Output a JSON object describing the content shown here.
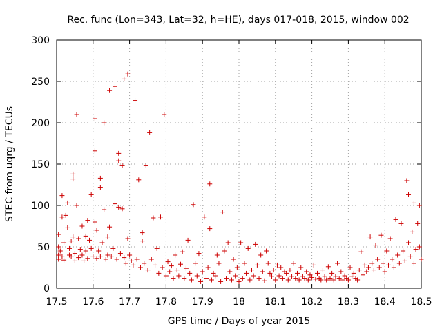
{
  "chart_data": {
    "type": "scatter",
    "title": "Rec. func (Lon=343, Lat=32, h=HE), days 017-018, 2015, window 002",
    "xlabel": "GPS time / Days of year 2015",
    "ylabel": "STEC from uqrg / TECUs",
    "xlim": [
      17.5,
      18.5
    ],
    "ylim": [
      0,
      300
    ],
    "xticks": [
      "17.5",
      "17.6",
      "17.7",
      "17.8",
      "17.9",
      "18",
      "18.1",
      "18.2",
      "18.3",
      "18.4",
      "18.5"
    ],
    "yticks": [
      "0",
      "50",
      "100",
      "150",
      "200",
      "250",
      "300"
    ],
    "grid": true,
    "marker": "+",
    "color": "#cc0000",
    "points": [
      [
        17.505,
        65
      ],
      [
        17.505,
        50
      ],
      [
        17.505,
        40
      ],
      [
        17.505,
        35
      ],
      [
        17.51,
        45
      ],
      [
        17.515,
        112
      ],
      [
        17.515,
        86
      ],
      [
        17.515,
        38
      ],
      [
        17.52,
        55
      ],
      [
        17.52,
        34
      ],
      [
        17.525,
        88
      ],
      [
        17.53,
        103
      ],
      [
        17.53,
        73
      ],
      [
        17.535,
        48
      ],
      [
        17.535,
        40
      ],
      [
        17.54,
        57
      ],
      [
        17.54,
        38
      ],
      [
        17.545,
        138
      ],
      [
        17.545,
        132
      ],
      [
        17.545,
        62
      ],
      [
        17.55,
        42
      ],
      [
        17.55,
        33
      ],
      [
        17.555,
        210
      ],
      [
        17.555,
        100
      ],
      [
        17.56,
        60
      ],
      [
        17.56,
        37
      ],
      [
        17.565,
        47
      ],
      [
        17.57,
        75
      ],
      [
        17.57,
        40
      ],
      [
        17.575,
        33
      ],
      [
        17.58,
        63
      ],
      [
        17.58,
        45
      ],
      [
        17.585,
        82
      ],
      [
        17.585,
        36
      ],
      [
        17.59,
        58
      ],
      [
        17.595,
        113
      ],
      [
        17.595,
        48
      ],
      [
        17.6,
        38
      ],
      [
        17.605,
        205
      ],
      [
        17.605,
        166
      ],
      [
        17.605,
        80
      ],
      [
        17.61,
        70
      ],
      [
        17.61,
        36
      ],
      [
        17.615,
        45
      ],
      [
        17.62,
        133
      ],
      [
        17.62,
        122
      ],
      [
        17.62,
        38
      ],
      [
        17.625,
        55
      ],
      [
        17.63,
        200
      ],
      [
        17.63,
        95
      ],
      [
        17.635,
        35
      ],
      [
        17.64,
        62
      ],
      [
        17.64,
        40
      ],
      [
        17.645,
        239
      ],
      [
        17.645,
        74
      ],
      [
        17.65,
        38
      ],
      [
        17.655,
        48
      ],
      [
        17.66,
        244
      ],
      [
        17.66,
        102
      ],
      [
        17.665,
        35
      ],
      [
        17.67,
        163
      ],
      [
        17.67,
        154
      ],
      [
        17.67,
        98
      ],
      [
        17.675,
        42
      ],
      [
        17.68,
        148
      ],
      [
        17.68,
        96
      ],
      [
        17.685,
        253
      ],
      [
        17.685,
        37
      ],
      [
        17.69,
        30
      ],
      [
        17.695,
        259
      ],
      [
        17.695,
        60
      ],
      [
        17.7,
        40
      ],
      [
        17.705,
        33
      ],
      [
        17.71,
        28
      ],
      [
        17.715,
        227
      ],
      [
        17.72,
        35
      ],
      [
        17.725,
        131
      ],
      [
        17.73,
        25
      ],
      [
        17.735,
        67
      ],
      [
        17.735,
        57
      ],
      [
        17.74,
        30
      ],
      [
        17.745,
        148
      ],
      [
        17.75,
        22
      ],
      [
        17.755,
        188
      ],
      [
        17.76,
        35
      ],
      [
        17.765,
        85
      ],
      [
        17.77,
        28
      ],
      [
        17.775,
        48
      ],
      [
        17.78,
        18
      ],
      [
        17.785,
        86
      ],
      [
        17.79,
        25
      ],
      [
        17.795,
        210
      ],
      [
        17.8,
        15
      ],
      [
        17.805,
        32
      ],
      [
        17.81,
        20
      ],
      [
        17.815,
        27
      ],
      [
        17.82,
        12
      ],
      [
        17.825,
        40
      ],
      [
        17.83,
        22
      ],
      [
        17.835,
        15
      ],
      [
        17.84,
        29
      ],
      [
        17.845,
        44
      ],
      [
        17.85,
        12
      ],
      [
        17.855,
        24
      ],
      [
        17.86,
        58
      ],
      [
        17.865,
        18
      ],
      [
        17.87,
        10
      ],
      [
        17.875,
        101
      ],
      [
        17.88,
        30
      ],
      [
        17.885,
        15
      ],
      [
        17.89,
        42
      ],
      [
        17.895,
        8
      ],
      [
        17.9,
        20
      ],
      [
        17.905,
        86
      ],
      [
        17.91,
        12
      ],
      [
        17.915,
        25
      ],
      [
        17.92,
        126
      ],
      [
        17.92,
        72
      ],
      [
        17.925,
        10
      ],
      [
        17.93,
        18
      ],
      [
        17.935,
        15
      ],
      [
        17.94,
        40
      ],
      [
        17.945,
        30
      ],
      [
        17.95,
        8
      ],
      [
        17.955,
        92
      ],
      [
        17.96,
        45
      ],
      [
        17.965,
        12
      ],
      [
        17.97,
        55
      ],
      [
        17.975,
        20
      ],
      [
        17.98,
        10
      ],
      [
        17.985,
        35
      ],
      [
        17.99,
        15
      ],
      [
        17.995,
        25
      ],
      [
        18.0,
        8
      ],
      [
        18.005,
        55
      ],
      [
        18.01,
        12
      ],
      [
        18.015,
        30
      ],
      [
        18.02,
        18
      ],
      [
        18.025,
        48
      ],
      [
        18.03,
        10
      ],
      [
        18.035,
        22
      ],
      [
        18.04,
        15
      ],
      [
        18.045,
        53
      ],
      [
        18.05,
        28
      ],
      [
        18.055,
        12
      ],
      [
        18.06,
        40
      ],
      [
        18.065,
        20
      ],
      [
        18.07,
        9
      ],
      [
        18.075,
        45
      ],
      [
        18.08,
        30
      ],
      [
        18.085,
        18
      ],
      [
        18.09,
        14
      ],
      [
        18.095,
        22
      ],
      [
        18.1,
        10
      ],
      [
        18.105,
        28
      ],
      [
        18.11,
        15
      ],
      [
        18.115,
        25
      ],
      [
        18.12,
        12
      ],
      [
        18.125,
        20
      ],
      [
        18.13,
        18
      ],
      [
        18.135,
        10
      ],
      [
        18.14,
        22
      ],
      [
        18.145,
        14
      ],
      [
        18.15,
        30
      ],
      [
        18.155,
        12
      ],
      [
        18.16,
        18
      ],
      [
        18.165,
        10
      ],
      [
        18.17,
        25
      ],
      [
        18.175,
        14
      ],
      [
        18.18,
        12
      ],
      [
        18.185,
        20
      ],
      [
        18.19,
        10
      ],
      [
        18.195,
        16
      ],
      [
        18.2,
        13
      ],
      [
        18.205,
        28
      ],
      [
        18.21,
        11
      ],
      [
        18.215,
        18
      ],
      [
        18.22,
        12
      ],
      [
        18.225,
        10
      ],
      [
        18.23,
        22
      ],
      [
        18.235,
        14
      ],
      [
        18.24,
        10
      ],
      [
        18.245,
        26
      ],
      [
        18.25,
        12
      ],
      [
        18.255,
        18
      ],
      [
        18.26,
        10
      ],
      [
        18.265,
        14
      ],
      [
        18.27,
        30
      ],
      [
        18.275,
        12
      ],
      [
        18.28,
        20
      ],
      [
        18.285,
        10
      ],
      [
        18.29,
        15
      ],
      [
        18.295,
        12
      ],
      [
        18.3,
        10
      ],
      [
        18.305,
        25
      ],
      [
        18.31,
        14
      ],
      [
        18.315,
        18
      ],
      [
        18.32,
        12
      ],
      [
        18.325,
        10
      ],
      [
        18.33,
        22
      ],
      [
        18.335,
        44
      ],
      [
        18.34,
        16
      ],
      [
        18.345,
        28
      ],
      [
        18.35,
        20
      ],
      [
        18.355,
        25
      ],
      [
        18.36,
        62
      ],
      [
        18.365,
        30
      ],
      [
        18.37,
        22
      ],
      [
        18.375,
        52
      ],
      [
        18.38,
        35
      ],
      [
        18.385,
        25
      ],
      [
        18.39,
        64
      ],
      [
        18.395,
        30
      ],
      [
        18.4,
        20
      ],
      [
        18.405,
        45
      ],
      [
        18.41,
        28
      ],
      [
        18.415,
        60
      ],
      [
        18.42,
        35
      ],
      [
        18.425,
        25
      ],
      [
        18.43,
        83
      ],
      [
        18.435,
        40
      ],
      [
        18.44,
        30
      ],
      [
        18.445,
        78
      ],
      [
        18.45,
        45
      ],
      [
        18.455,
        33
      ],
      [
        18.46,
        130
      ],
      [
        18.465,
        113
      ],
      [
        18.465,
        55
      ],
      [
        18.47,
        38
      ],
      [
        18.475,
        68
      ],
      [
        18.48,
        103
      ],
      [
        18.48,
        30
      ],
      [
        18.485,
        47
      ],
      [
        18.49,
        78
      ],
      [
        18.495,
        100
      ],
      [
        18.495,
        50
      ],
      [
        18.5,
        35
      ]
    ]
  }
}
